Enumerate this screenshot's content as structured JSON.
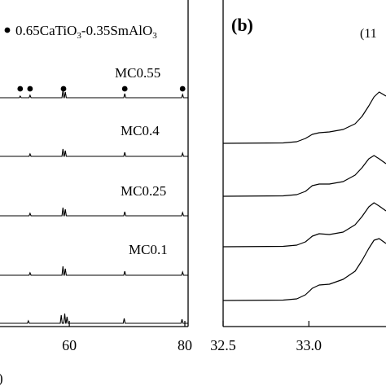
{
  "chart_data": [
    {
      "type": "line",
      "panel": "a",
      "legend": {
        "marker": "●",
        "formula_html": "0.65CaTiO<sub>3</sub>-0.35SmAlO<sub>3</sub>",
        "parts": [
          "0.65CaTiO",
          "3",
          "-0.35SmAlO",
          "3"
        ]
      },
      "x_ticks": [
        60,
        80
      ],
      "xlim_visible": [
        48,
        80
      ],
      "x_axis_label_fragment": ")",
      "series": [
        {
          "name": "MC0.55",
          "peaks": [
            {
              "x": 51.5,
              "h": 2
            },
            {
              "x": 53.2,
              "h": 3
            },
            {
              "x": 58.9,
              "h": 9
            },
            {
              "x": 59.3,
              "h": 7
            },
            {
              "x": 69.6,
              "h": 5
            },
            {
              "x": 79.6,
              "h": 4
            }
          ],
          "marked_peaks": [
            51.5,
            53.2,
            59.0,
            69.6,
            79.6
          ]
        },
        {
          "name": "MC0.4",
          "peaks": [
            {
              "x": 53.2,
              "h": 3
            },
            {
              "x": 58.9,
              "h": 9
            },
            {
              "x": 59.3,
              "h": 7
            },
            {
              "x": 69.6,
              "h": 5
            },
            {
              "x": 79.6,
              "h": 4
            }
          ]
        },
        {
          "name": "MC0.25",
          "peaks": [
            {
              "x": 53.2,
              "h": 3
            },
            {
              "x": 58.9,
              "h": 10
            },
            {
              "x": 59.3,
              "h": 8
            },
            {
              "x": 69.6,
              "h": 5
            },
            {
              "x": 79.6,
              "h": 4
            }
          ]
        },
        {
          "name": "MC0.1",
          "peaks": [
            {
              "x": 53.2,
              "h": 3
            },
            {
              "x": 58.9,
              "h": 11
            },
            {
              "x": 59.3,
              "h": 8
            },
            {
              "x": 69.6,
              "h": 5
            },
            {
              "x": 79.6,
              "h": 4
            }
          ]
        },
        {
          "name": "",
          "peaks": [
            {
              "x": 52.9,
              "h": 3
            },
            {
              "x": 58.6,
              "h": 10
            },
            {
              "x": 59.2,
              "h": 12
            },
            {
              "x": 59.6,
              "h": 8
            },
            {
              "x": 69.5,
              "h": 6
            },
            {
              "x": 79.5,
              "h": 5
            }
          ]
        }
      ]
    },
    {
      "type": "line",
      "panel": "b",
      "panel_label": "(b)",
      "annotation": "(11",
      "xlim_visible": [
        32.5,
        33.45
      ],
      "x_ticks": [
        32.5,
        33.0
      ],
      "x_tick_labels": [
        "32.5",
        "33.0"
      ],
      "series": [
        {
          "name": "",
          "points": [
            [
              32.5,
              0
            ],
            [
              32.85,
              0.5
            ],
            [
              32.93,
              2
            ],
            [
              32.98,
              6
            ],
            [
              33.02,
              11
            ],
            [
              33.06,
              13
            ],
            [
              33.12,
              14
            ],
            [
              33.2,
              17
            ],
            [
              33.27,
              24
            ],
            [
              33.31,
              33
            ],
            [
              33.35,
              46
            ],
            [
              33.38,
              57
            ],
            [
              33.41,
              63
            ],
            [
              33.45,
              58
            ]
          ]
        },
        {
          "name": "",
          "points": [
            [
              32.5,
              0
            ],
            [
              32.85,
              0.5
            ],
            [
              32.93,
              2
            ],
            [
              32.98,
              6
            ],
            [
              33.02,
              13
            ],
            [
              33.06,
              15
            ],
            [
              33.12,
              15
            ],
            [
              33.2,
              18
            ],
            [
              33.27,
              26
            ],
            [
              33.31,
              35
            ],
            [
              33.35,
              46
            ],
            [
              33.38,
              50
            ],
            [
              33.41,
              46
            ],
            [
              33.45,
              40
            ]
          ]
        },
        {
          "name": "",
          "points": [
            [
              32.5,
              0
            ],
            [
              32.85,
              0.5
            ],
            [
              32.93,
              2
            ],
            [
              32.98,
              6
            ],
            [
              33.02,
              13
            ],
            [
              33.06,
              16
            ],
            [
              33.12,
              15
            ],
            [
              33.2,
              18
            ],
            [
              33.27,
              27
            ],
            [
              33.31,
              37
            ],
            [
              33.35,
              49
            ],
            [
              33.38,
              54
            ],
            [
              33.41,
              50
            ],
            [
              33.45,
              44
            ]
          ]
        },
        {
          "name": "",
          "points": [
            [
              32.5,
              0
            ],
            [
              32.85,
              0.5
            ],
            [
              32.93,
              2
            ],
            [
              32.98,
              7
            ],
            [
              33.02,
              15
            ],
            [
              33.06,
              19
            ],
            [
              33.12,
              20
            ],
            [
              33.2,
              26
            ],
            [
              33.27,
              36
            ],
            [
              33.31,
              49
            ],
            [
              33.35,
              64
            ],
            [
              33.38,
              74
            ],
            [
              33.41,
              76
            ],
            [
              33.45,
              70
            ]
          ]
        }
      ]
    }
  ]
}
